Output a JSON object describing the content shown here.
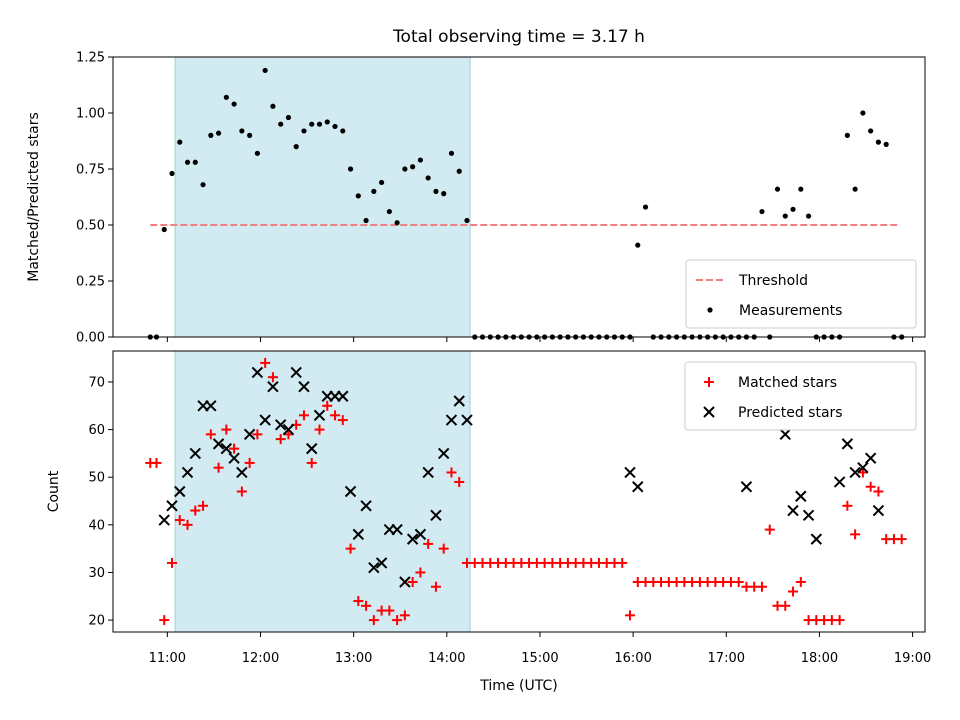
{
  "chart_data": [
    {
      "type": "scatter",
      "title": "Total observing time = 3.17 h",
      "xlabel": "",
      "ylabel": "Matched/Predicted stars",
      "ylim": [
        0,
        1.25
      ],
      "yticks": [
        "0.00",
        "0.25",
        "0.50",
        "0.75",
        "1.00",
        "1.25"
      ],
      "highlight_span": {
        "start": "11:05",
        "end": "14:15",
        "color": "#add8e6"
      },
      "legend_position": "lower right",
      "series": [
        {
          "name": "Threshold",
          "style": "dashed-line",
          "color": "#f08080",
          "x": [
            "10:49",
            "18:51"
          ],
          "y": [
            0.5,
            0.5
          ]
        },
        {
          "name": "Measurements",
          "style": "dot",
          "color": "#000000",
          "x": [
            "10:49",
            "10:53",
            "10:58",
            "11:03",
            "11:08",
            "11:13",
            "11:18",
            "11:23",
            "11:28",
            "11:33",
            "11:38",
            "11:43",
            "11:48",
            "11:53",
            "11:58",
            "12:03",
            "12:08",
            "12:13",
            "12:18",
            "12:23",
            "12:28",
            "12:33",
            "12:38",
            "12:43",
            "12:48",
            "12:53",
            "12:58",
            "13:03",
            "13:08",
            "13:13",
            "13:18",
            "13:23",
            "13:28",
            "13:33",
            "13:38",
            "13:43",
            "13:48",
            "13:53",
            "13:58",
            "14:03",
            "14:08",
            "14:13",
            "14:18",
            "14:23",
            "14:28",
            "14:33",
            "14:38",
            "14:43",
            "14:48",
            "14:53",
            "14:58",
            "15:03",
            "15:08",
            "15:13",
            "15:18",
            "15:23",
            "15:28",
            "15:33",
            "15:38",
            "15:43",
            "15:48",
            "15:53",
            "15:58",
            "16:03",
            "16:08",
            "16:13",
            "16:18",
            "16:23",
            "16:28",
            "16:33",
            "16:38",
            "16:43",
            "16:48",
            "16:53",
            "16:58",
            "17:03",
            "17:08",
            "17:13",
            "17:18",
            "17:23",
            "17:28",
            "17:33",
            "17:38",
            "17:43",
            "17:48",
            "17:53",
            "17:58",
            "18:03",
            "18:08",
            "18:13",
            "18:18",
            "18:23",
            "18:28",
            "18:33",
            "18:38",
            "18:43",
            "18:48",
            "18:53"
          ],
          "y": [
            0,
            0,
            0.48,
            0.73,
            0.87,
            0.78,
            0.78,
            0.68,
            0.9,
            0.91,
            1.07,
            1.04,
            0.92,
            0.9,
            0.82,
            1.19,
            1.03,
            0.95,
            0.98,
            0.85,
            0.92,
            0.95,
            0.95,
            0.96,
            0.94,
            0.92,
            0.75,
            0.63,
            0.52,
            0.65,
            0.69,
            0.56,
            0.51,
            0.75,
            0.76,
            0.79,
            0.71,
            0.65,
            0.64,
            0.82,
            0.74,
            0.52,
            0,
            0,
            0,
            0,
            0,
            0,
            0,
            0,
            0,
            0,
            0,
            0,
            0,
            0,
            0,
            0,
            0,
            0,
            0,
            0,
            0,
            0.41,
            0.58,
            0,
            0,
            0,
            0,
            0,
            0,
            0,
            0,
            0,
            0,
            0,
            0,
            0,
            0,
            0.56,
            0,
            0.66,
            0.54,
            0.57,
            0.66,
            0.54,
            0,
            0,
            0,
            0,
            0.9,
            0.66,
            1.0,
            0.92,
            0.87,
            0.86,
            0,
            0
          ]
        }
      ]
    },
    {
      "type": "scatter",
      "title": "",
      "xlabel": "Time (UTC)",
      "ylabel": "Count",
      "ylim": [
        17.5,
        76.5
      ],
      "yticks": [
        "20",
        "30",
        "40",
        "50",
        "60",
        "70"
      ],
      "xlim": [
        "10:25",
        "19:08"
      ],
      "xticks": [
        "11:00",
        "12:00",
        "13:00",
        "14:00",
        "15:00",
        "16:00",
        "17:00",
        "18:00",
        "19:00"
      ],
      "highlight_span": {
        "start": "11:05",
        "end": "14:15",
        "color": "#add8e6"
      },
      "legend_position": "upper right",
      "series": [
        {
          "name": "Matched stars",
          "style": "plus",
          "color": "#ff0000",
          "x": [
            "10:49",
            "10:53",
            "10:58",
            "11:03",
            "11:08",
            "11:13",
            "11:18",
            "11:23",
            "11:28",
            "11:33",
            "11:38",
            "11:43",
            "11:48",
            "11:53",
            "11:58",
            "12:03",
            "12:08",
            "12:13",
            "12:18",
            "12:23",
            "12:28",
            "12:33",
            "12:38",
            "12:43",
            "12:48",
            "12:53",
            "12:58",
            "13:03",
            "13:08",
            "13:13",
            "13:18",
            "13:23",
            "13:28",
            "13:33",
            "13:38",
            "13:43",
            "13:48",
            "13:53",
            "13:58",
            "14:03",
            "14:08",
            "14:13",
            "14:18",
            "14:23",
            "14:28",
            "14:33",
            "14:38",
            "14:43",
            "14:48",
            "14:53",
            "14:58",
            "15:03",
            "15:08",
            "15:13",
            "15:18",
            "15:23",
            "15:28",
            "15:33",
            "15:38",
            "15:43",
            "15:48",
            "15:53",
            "15:58",
            "16:03",
            "16:08",
            "16:13",
            "16:18",
            "16:23",
            "16:28",
            "16:33",
            "16:38",
            "16:43",
            "16:48",
            "16:53",
            "16:58",
            "17:03",
            "17:08",
            "17:13",
            "17:18",
            "17:23",
            "17:28",
            "17:33",
            "17:38",
            "17:43",
            "17:48",
            "17:53",
            "17:58",
            "18:03",
            "18:08",
            "18:13",
            "18:18",
            "18:23",
            "18:28",
            "18:33",
            "18:38",
            "18:43",
            "18:48",
            "18:53"
          ],
          "y": [
            53,
            53,
            20,
            32,
            41,
            40,
            43,
            44,
            59,
            52,
            60,
            56,
            47,
            53,
            59,
            74,
            71,
            58,
            59,
            61,
            63,
            53,
            60,
            65,
            63,
            62,
            35,
            24,
            23,
            20,
            22,
            22,
            20,
            21,
            28,
            30,
            36,
            27,
            35,
            51,
            49,
            32,
            32,
            32,
            32,
            32,
            32,
            32,
            32,
            32,
            32,
            32,
            32,
            32,
            32,
            32,
            32,
            32,
            32,
            32,
            32,
            32,
            21,
            28,
            28,
            28,
            28,
            28,
            28,
            28,
            28,
            28,
            28,
            28,
            28,
            28,
            28,
            27,
            27,
            27,
            39,
            23,
            23,
            26,
            28,
            20,
            20,
            20,
            20,
            20,
            44,
            38,
            51,
            48,
            47,
            37,
            37,
            37
          ]
        },
        {
          "name": "Predicted stars",
          "style": "cross",
          "color": "#000000",
          "x": [
            "10:58",
            "11:03",
            "11:08",
            "11:13",
            "11:18",
            "11:23",
            "11:28",
            "11:33",
            "11:38",
            "11:43",
            "11:48",
            "11:53",
            "11:58",
            "12:03",
            "12:08",
            "12:13",
            "12:18",
            "12:23",
            "12:28",
            "12:33",
            "12:38",
            "12:43",
            "12:48",
            "12:53",
            "12:58",
            "13:03",
            "13:08",
            "13:13",
            "13:18",
            "13:23",
            "13:28",
            "13:33",
            "13:38",
            "13:43",
            "13:48",
            "13:53",
            "13:58",
            "14:03",
            "14:08",
            "14:13",
            "15:58",
            "16:03",
            "17:13",
            "17:38",
            "17:43",
            "17:48",
            "17:53",
            "17:58",
            "18:13",
            "18:18",
            "18:23",
            "18:28",
            "18:33",
            "18:38"
          ],
          "y": [
            41,
            44,
            47,
            51,
            55,
            65,
            65,
            57,
            56,
            54,
            51,
            59,
            72,
            62,
            69,
            61,
            60,
            72,
            69,
            56,
            63,
            67,
            67,
            67,
            47,
            38,
            44,
            31,
            32,
            39,
            39,
            28,
            37,
            38,
            51,
            42,
            55,
            62,
            66,
            62,
            51,
            48,
            48,
            59,
            43,
            46,
            42,
            37,
            49,
            57,
            51,
            52,
            54,
            43
          ]
        }
      ]
    }
  ]
}
